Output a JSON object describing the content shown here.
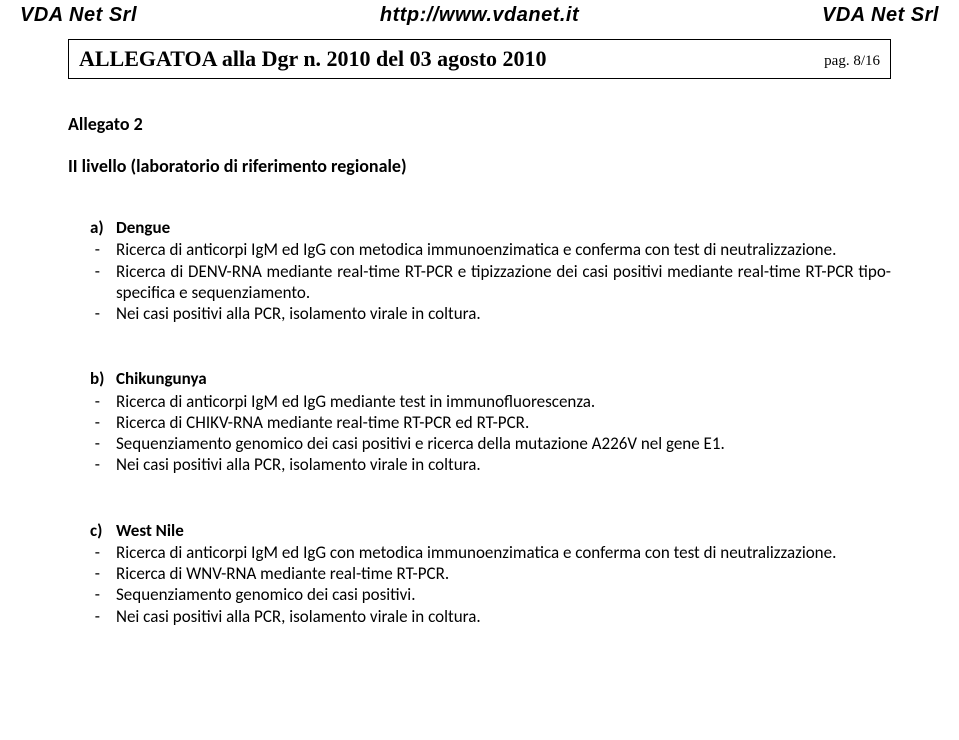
{
  "header": {
    "left": "VDA Net Srl",
    "center": "http://www.vdanet.it",
    "right": "VDA Net Srl"
  },
  "titleBox": {
    "left": "ALLEGATOA alla Dgr n.  2010 del 03 agosto 2010",
    "right": "pag. 8/16"
  },
  "allegatoLabel": "Allegato 2",
  "levelLabel": "II livello (laboratorio di riferimento regionale)",
  "sections": [
    {
      "letter": "a)",
      "name": "Dengue",
      "items": [
        "Ricerca di anticorpi IgM ed IgG con metodica immunoenzimatica e conferma con test di neutralizzazione.",
        "Ricerca di DENV-RNA mediante real-time RT-PCR e tipizzazione dei casi positivi mediante real-time RT-PCR tipo-specifica e sequenziamento.",
        " Nei casi positivi alla PCR, isolamento virale in coltura."
      ]
    },
    {
      "letter": "b)",
      "name": "Chikungunya",
      "items": [
        "Ricerca di anticorpi IgM ed IgG mediante test in immunofluorescenza.",
        "Ricerca di CHIKV-RNA mediante real-time RT-PCR ed RT-PCR.",
        "Sequenziamento genomico dei casi positivi e ricerca della mutazione A226V nel gene E1.",
        "Nei casi positivi alla PCR, isolamento virale in coltura."
      ]
    },
    {
      "letter": "c)",
      "name": "West Nile",
      "items": [
        "Ricerca di anticorpi IgM ed IgG con metodica immunoenzimatica  e conferma con test di neutralizzazione.",
        "Ricerca di WNV-RNA mediante real-time RT-PCR.",
        "Sequenziamento genomico dei casi positivi.",
        "Nei casi positivi alla PCR, isolamento virale in coltura."
      ]
    }
  ]
}
